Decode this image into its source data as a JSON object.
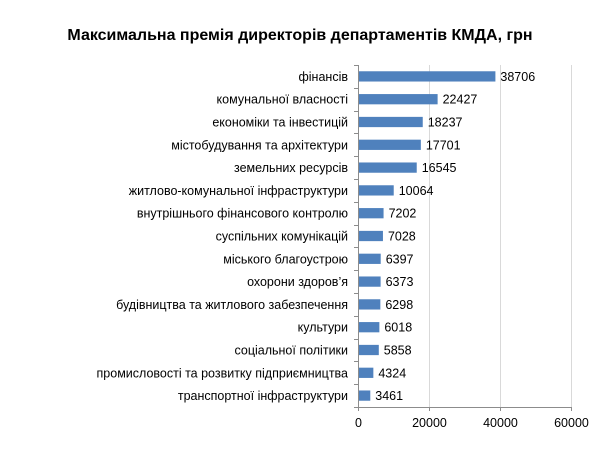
{
  "chart_data": {
    "type": "bar",
    "orientation": "horizontal",
    "title": "Максимальна премія директорів департаментів КМДА, грн",
    "xlabel": "",
    "ylabel": "",
    "xlim": [
      0,
      60000
    ],
    "xticks": [
      0,
      20000,
      40000,
      60000
    ],
    "grid": true,
    "legend": "none",
    "bar_color": "#4f81bd",
    "categories": [
      "фінансів",
      "комунальної власності",
      "економіки та інвестицій",
      "містобудування та архітектури",
      "земельних ресурсів",
      "житлово-комунальної інфраструктури",
      "внутрішнього фінансового контролю",
      "суспільних комунікацій",
      "міського благоустрою",
      "охорони здоров’я",
      "будівництва та житлового забезпечення",
      "культури",
      "соціальної політики",
      "промисловості та розвитку підприємництва",
      "транспортної інфраструктури"
    ],
    "values": [
      38706,
      22427,
      18237,
      17701,
      16545,
      10064,
      7202,
      7028,
      6397,
      6373,
      6298,
      6018,
      5858,
      4324,
      3461
    ]
  }
}
